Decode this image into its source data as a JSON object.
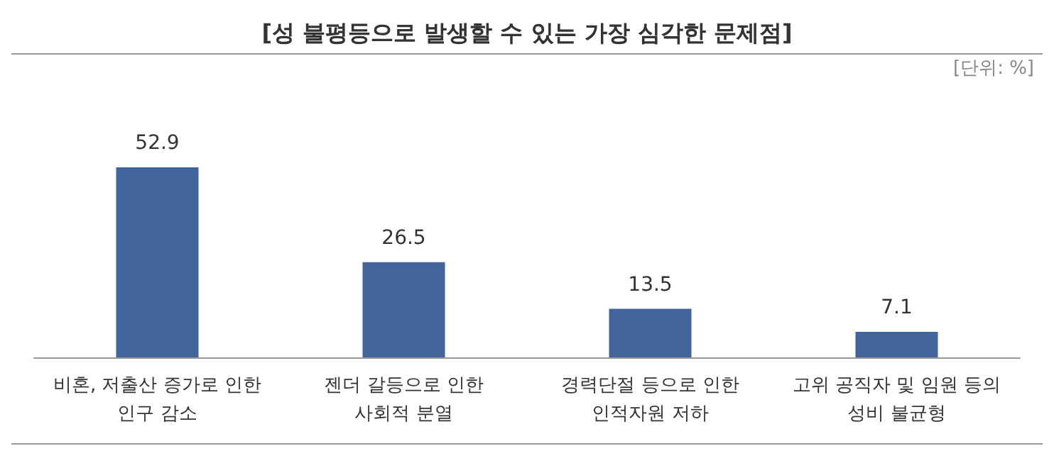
{
  "chart_data": {
    "type": "bar",
    "title": "[성 불평등으로 발생할 수 있는 가장 심각한 문제점]",
    "annotations": [
      "[단위: %]"
    ],
    "categories": [
      "비혼, 저출산 증가로 인한\n인구 감소",
      "젠더 갈등으로 인한\n사회적 분열",
      "경력단절 등으로 인한\n인적자원 저하",
      "고위 공직자 및 임원 등의\n성비 불균형"
    ],
    "values": [
      52.9,
      26.5,
      13.5,
      7.1
    ],
    "color": "#41659a",
    "data_labels": true
  }
}
